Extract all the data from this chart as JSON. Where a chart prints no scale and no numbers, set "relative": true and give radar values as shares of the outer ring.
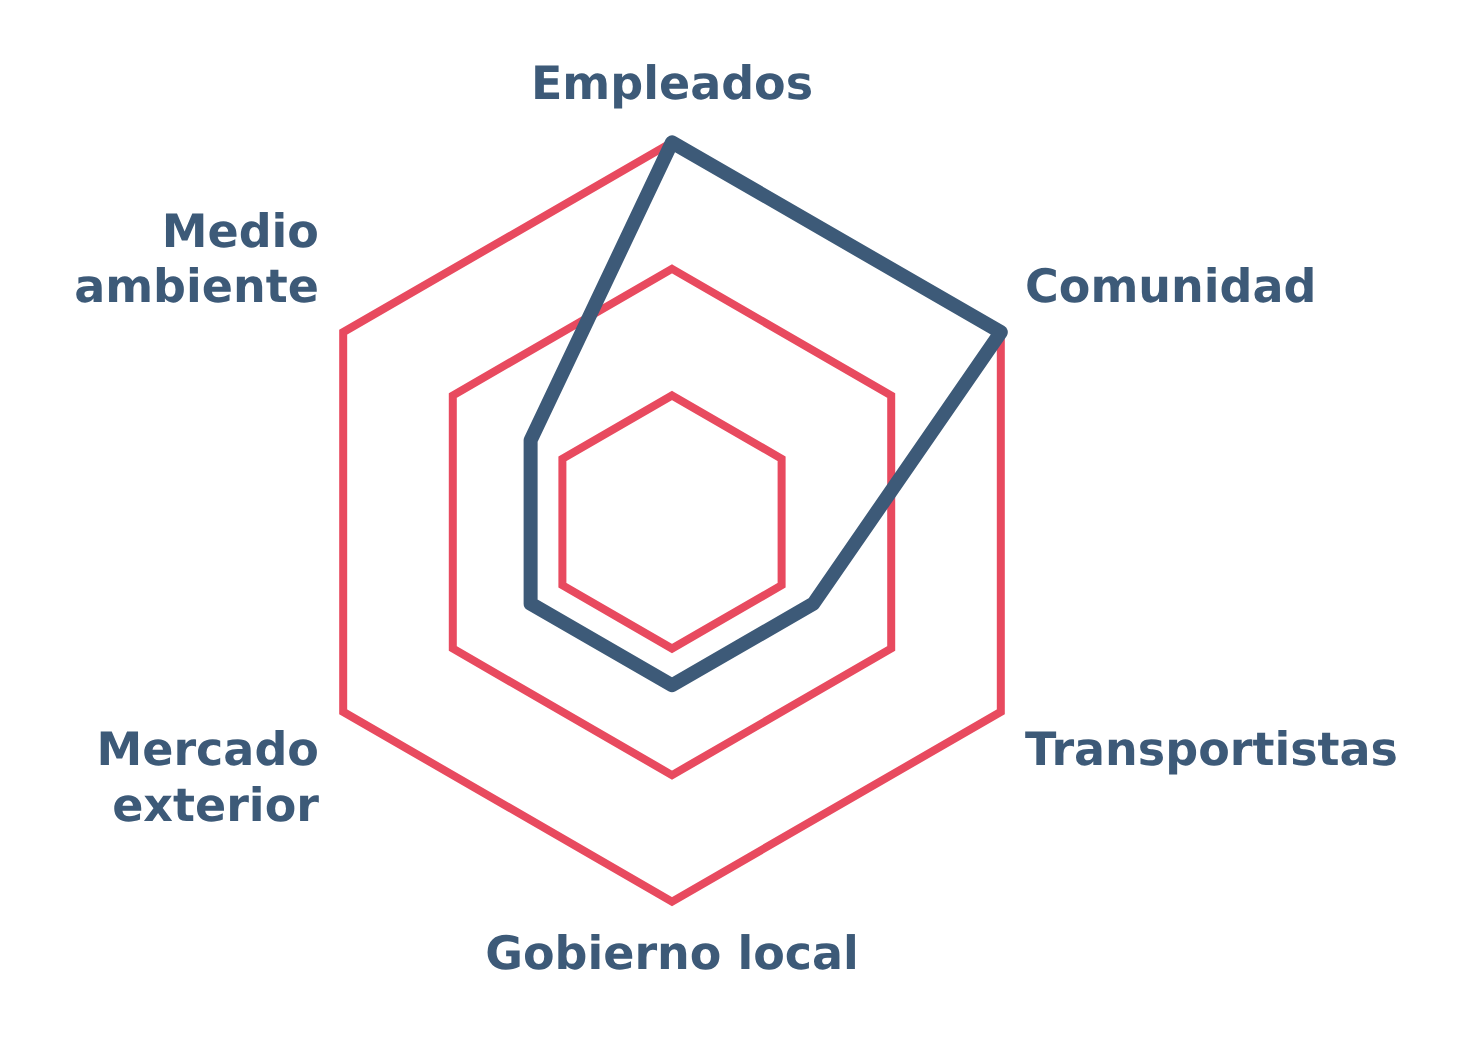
{
  "chart_data": {
    "type": "radar",
    "relative": true,
    "categories": [
      "Empleados",
      "Comunidad",
      "Transportistas",
      "Gobierno local",
      "Mercado exterior",
      "Medio ambiente"
    ],
    "series": [
      {
        "color": "#3d5a78",
        "values": [
          1,
          1,
          0.43,
          0.43,
          0.43,
          0.43
        ]
      }
    ],
    "grid": true,
    "legend": false,
    "marker": "none"
  }
}
